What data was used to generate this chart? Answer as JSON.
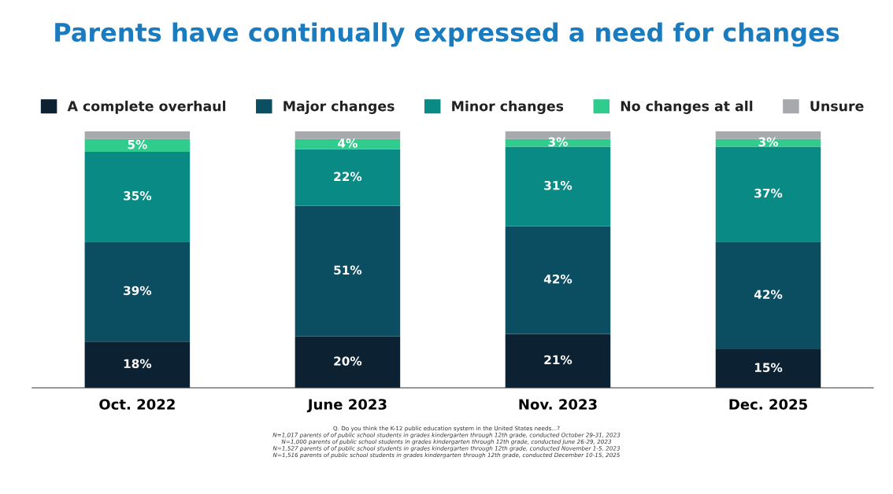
{
  "chart_data": {
    "type": "bar",
    "title": "Parents have continually expressed a need for changes",
    "categories": [
      "Oct. 2022",
      "June 2023",
      "Nov. 2023",
      "Dec. 2025"
    ],
    "stacked": true,
    "legend": "top",
    "tick_labels": "x",
    "grid": false,
    "series": [
      {
        "name": "A complete overhaul",
        "color": "#0c2233",
        "values": [
          18,
          20,
          21,
          15
        ],
        "value_labels": [
          "18%",
          "20%",
          "21%",
          "15%"
        ]
      },
      {
        "name": "Major changes",
        "color": "#0b4e62",
        "values": [
          39,
          51,
          42,
          42
        ],
        "value_labels": [
          "39%",
          "51%",
          "42%",
          "42%"
        ]
      },
      {
        "name": "Minor changes",
        "color": "#0a8a84",
        "values": [
          35,
          22,
          31,
          37
        ],
        "value_labels": [
          "35%",
          "22%",
          "31%",
          "37%"
        ]
      },
      {
        "name": "No changes at all",
        "color": "#2fcc8e",
        "values": [
          5,
          4,
          3,
          3
        ],
        "value_labels": [
          "5%",
          "4%",
          "3%",
          "3%"
        ]
      },
      {
        "name": "Unsure",
        "color": "#a7a9ac",
        "values": [
          3,
          3,
          3,
          3
        ],
        "value_labels": [
          null,
          null,
          null,
          null
        ]
      }
    ],
    "annotations": [
      "Q. Do you think the K-12 public education system in the United States needs...?",
      "N=1,017 parents of of public school students in grades kindergarten through 12th grade, conducted October 29-31, 2023",
      "N=1,000 parents of public school students in grades kindergarten through 12th grade, conducted June 26-29, 2023",
      "N=1,527 parents of of public school students in grades kindergarten through 12th grade, conducted November 1-5, 2023",
      "N=1,516 parents of public school students in grades kindergarten through 12th grade, conducted December 10-15, 2025"
    ]
  }
}
